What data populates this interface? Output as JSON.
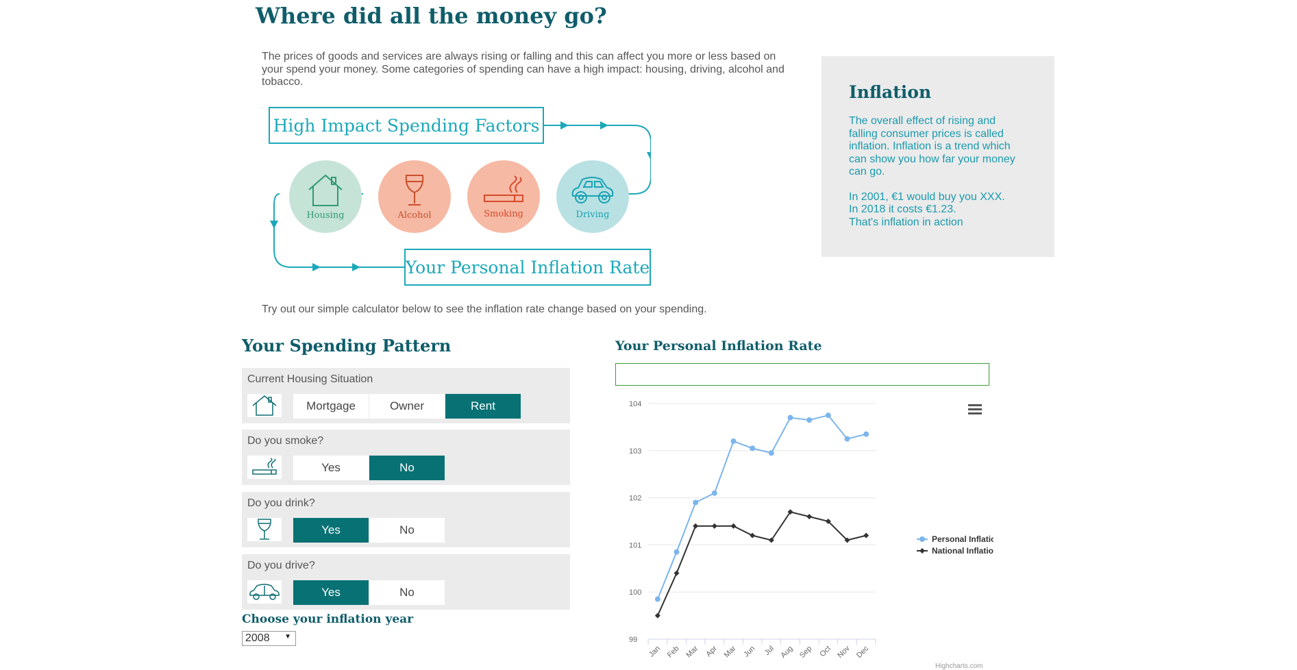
{
  "page": {
    "title": "Where did all the money go?",
    "intro": "The prices of goods and services are always rising or falling and this can affect you more or less based on your spend your money. Some categories of spending can have a high impact: housing, driving, alcohol and tobacco.",
    "try_text": "Try out our simple calculator below to see the inflation rate change based on your spending."
  },
  "diagram": {
    "top_box": "High Impact Spending Factors",
    "bottom_box": "Your Personal Inflation Rate",
    "circles": [
      {
        "label": "Housing",
        "icon": "house-icon",
        "bg": "#c6e3d8",
        "color": "#2e9a73"
      },
      {
        "label": "Alcohol",
        "icon": "wine-glass-icon",
        "bg": "#f6b9a4",
        "color": "#c84f2c"
      },
      {
        "label": "Smoking",
        "icon": "cigarette-icon",
        "bg": "#f6b9a4",
        "color": "#d64a2b"
      },
      {
        "label": "Driving",
        "icon": "car-icon",
        "bg": "#b9e1e3",
        "color": "#1aa2b5"
      }
    ]
  },
  "inflation_box": {
    "title": "Inflation",
    "paragraph1": "The overall effect of rising and falling consumer prices is called inflation. Inflation is a trend which can show you how far your money can go.",
    "line1": "In 2001, €1 would buy you XXX.",
    "line2": "In 2018 it costs €1.23.",
    "line3": "That's inflation in action"
  },
  "spending": {
    "title": "Your Spending Pattern",
    "questions": [
      {
        "label": "Current Housing Situation",
        "icon": "house-icon",
        "options": [
          "Mortgage",
          "Owner",
          "Rent"
        ],
        "selected": "Rent"
      },
      {
        "label": "Do you smoke?",
        "icon": "cigarette-icon",
        "options": [
          "Yes",
          "No"
        ],
        "selected": "No"
      },
      {
        "label": "Do you drink?",
        "icon": "wine-glass-icon",
        "options": [
          "Yes",
          "No"
        ],
        "selected": "Yes"
      },
      {
        "label": "Do you drive?",
        "icon": "car-icon",
        "options": [
          "Yes",
          "No"
        ],
        "selected": "Yes"
      }
    ],
    "year_label": "Choose your inflation year",
    "year_value": "2008"
  },
  "chart_panel": {
    "title": "Your Personal Inflation Rate",
    "input_value": "",
    "menu_icon": "hamburger-menu-icon",
    "credits": "Highcharts.com"
  },
  "chart_data": {
    "type": "line",
    "title": "",
    "xlabel": "",
    "ylabel": "",
    "categories": [
      "Jan",
      "Feb",
      "Mar",
      "Apr",
      "Mar",
      "Jun",
      "Jul",
      "Aug",
      "Sep",
      "Oct",
      "Nov",
      "Dec"
    ],
    "ylim": [
      99,
      104
    ],
    "yticks": [
      99,
      100,
      101,
      102,
      103,
      104
    ],
    "grid": true,
    "legend": "right",
    "series": [
      {
        "name": "Personal Inflation",
        "color": "#7cb5ec",
        "marker": "circle",
        "values": [
          99.85,
          100.85,
          101.9,
          102.1,
          103.2,
          103.05,
          102.95,
          103.7,
          103.65,
          103.75,
          103.25,
          103.35
        ]
      },
      {
        "name": "National Inflation",
        "color": "#333333",
        "marker": "diamond",
        "values": [
          99.5,
          100.4,
          101.4,
          101.4,
          101.4,
          101.2,
          101.1,
          101.7,
          101.6,
          101.5,
          101.1,
          101.2
        ]
      }
    ]
  }
}
